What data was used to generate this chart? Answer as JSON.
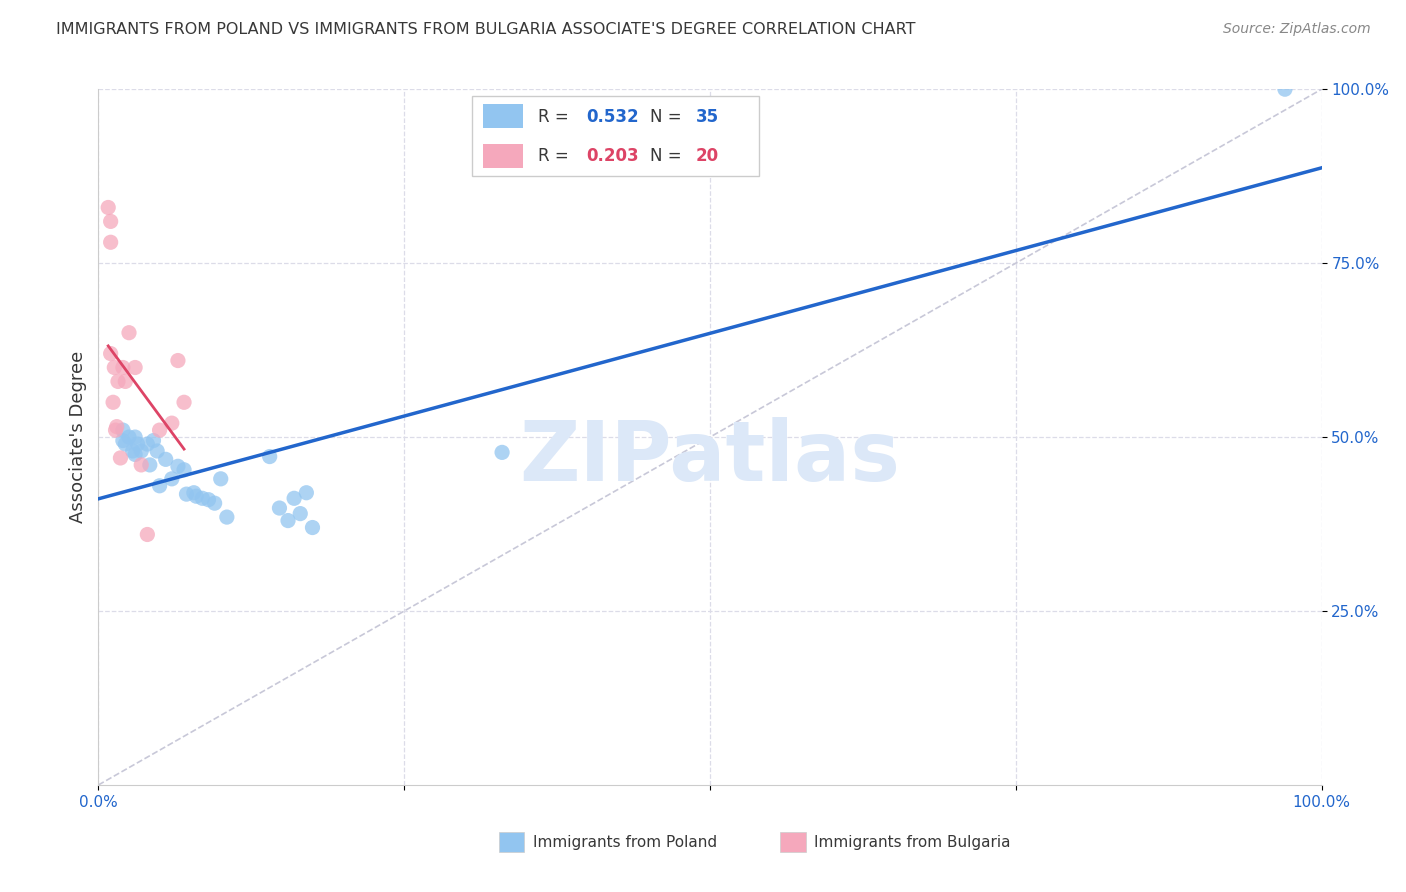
{
  "title": "IMMIGRANTS FROM POLAND VS IMMIGRANTS FROM BULGARIA ASSOCIATE'S DEGREE CORRELATION CHART",
  "source": "Source: ZipAtlas.com",
  "ylabel": "Associate's Degree",
  "xlim": [
    0.0,
    1.0
  ],
  "ylim": [
    0.0,
    1.0
  ],
  "xtick_vals": [
    0.0,
    0.25,
    0.5,
    0.75,
    1.0
  ],
  "xtick_labels": [
    "0.0%",
    "",
    "",
    "",
    "100.0%"
  ],
  "ytick_vals": [
    0.25,
    0.5,
    0.75,
    1.0
  ],
  "ytick_labels": [
    "25.0%",
    "50.0%",
    "75.0%",
    "100.0%"
  ],
  "poland_R": 0.532,
  "poland_N": 35,
  "bulgaria_R": 0.203,
  "bulgaria_N": 20,
  "poland_color": "#92C5F0",
  "bulgaria_color": "#F5A8BC",
  "blue_line_color": "#2266CC",
  "pink_line_color": "#DD4466",
  "diag_color": "#C8C8D8",
  "bg_color": "#FFFFFF",
  "grid_color": "#DCDCE8",
  "title_color": "#383838",
  "blue_label_color": "#2266CC",
  "pink_label_color": "#DD4466",
  "source_color": "#888888",
  "watermark_text": "ZIPatlas",
  "watermark_color": "#DCE8F8",
  "legend_edge_color": "#CCCCCC",
  "poland_x": [
    0.02,
    0.02,
    0.022,
    0.025,
    0.028,
    0.03,
    0.03,
    0.032,
    0.035,
    0.04,
    0.042,
    0.045,
    0.048,
    0.05,
    0.055,
    0.06,
    0.065,
    0.07,
    0.072,
    0.078,
    0.08,
    0.085,
    0.09,
    0.095,
    0.1,
    0.105,
    0.14,
    0.148,
    0.155,
    0.16,
    0.165,
    0.17,
    0.175,
    0.33,
    0.97
  ],
  "poland_y": [
    0.51,
    0.495,
    0.49,
    0.5,
    0.48,
    0.5,
    0.475,
    0.49,
    0.48,
    0.49,
    0.46,
    0.495,
    0.48,
    0.43,
    0.468,
    0.44,
    0.458,
    0.453,
    0.418,
    0.42,
    0.415,
    0.412,
    0.41,
    0.405,
    0.44,
    0.385,
    0.472,
    0.398,
    0.38,
    0.412,
    0.39,
    0.42,
    0.37,
    0.478,
    1.0
  ],
  "bulgaria_x": [
    0.008,
    0.01,
    0.01,
    0.01,
    0.012,
    0.013,
    0.014,
    0.015,
    0.016,
    0.018,
    0.02,
    0.022,
    0.025,
    0.03,
    0.035,
    0.04,
    0.05,
    0.06,
    0.065,
    0.07
  ],
  "bulgaria_y": [
    0.83,
    0.81,
    0.78,
    0.62,
    0.55,
    0.6,
    0.51,
    0.515,
    0.58,
    0.47,
    0.6,
    0.58,
    0.65,
    0.6,
    0.46,
    0.36,
    0.51,
    0.52,
    0.61,
    0.55
  ]
}
